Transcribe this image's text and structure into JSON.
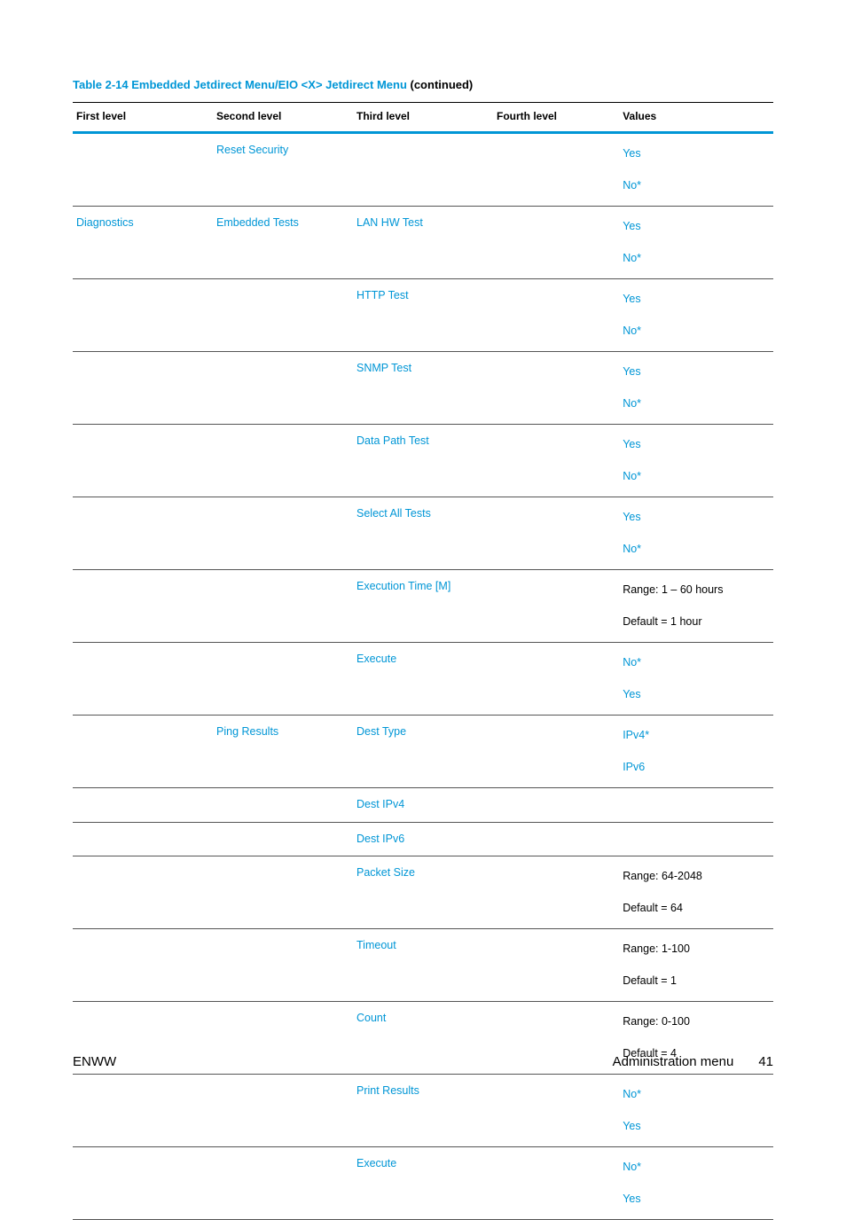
{
  "caption": {
    "prefix": "Table 2-14  Embedded Jetdirect Menu",
    "sep": "/",
    "mid": "EIO <X> Jetdirect Menu",
    "suffix": " (continued)"
  },
  "columns": {
    "c0": "First level",
    "c1": "Second level",
    "c2": "Third level",
    "c3": "Fourth level",
    "c4": "Values",
    "widths": [
      "20%",
      "20%",
      "20%",
      "18%",
      "22%"
    ]
  },
  "colors": {
    "link": "#0096d6",
    "text": "#000000",
    "header_rule": "#0096d6",
    "background": "#ffffff"
  },
  "rows": [
    {
      "c0": "",
      "c1": "Reset Security",
      "c2": "",
      "c3": "",
      "v": [
        "Yes",
        "No*"
      ],
      "vlink": [
        true,
        true
      ]
    },
    {
      "c0": "Diagnostics",
      "c1": "Embedded Tests",
      "c2": "LAN HW Test",
      "c3": "",
      "v": [
        "Yes",
        "No*"
      ],
      "vlink": [
        true,
        true
      ]
    },
    {
      "c0": "",
      "c1": "",
      "c2": "HTTP Test",
      "c3": "",
      "v": [
        "Yes",
        "No*"
      ],
      "vlink": [
        true,
        true
      ]
    },
    {
      "c0": "",
      "c1": "",
      "c2": "SNMP Test",
      "c3": "",
      "v": [
        "Yes",
        "No*"
      ],
      "vlink": [
        true,
        true
      ]
    },
    {
      "c0": "",
      "c1": "",
      "c2": "Data Path Test",
      "c3": "",
      "v": [
        "Yes",
        "No*"
      ],
      "vlink": [
        true,
        true
      ]
    },
    {
      "c0": "",
      "c1": "",
      "c2": "Select All Tests",
      "c3": "",
      "v": [
        "Yes",
        "No*"
      ],
      "vlink": [
        true,
        true
      ]
    },
    {
      "c0": "",
      "c1": "",
      "c2": "Execution Time [M]",
      "c3": "",
      "v": [
        "Range: 1 – 60 hours",
        "Default = 1 hour"
      ],
      "vlink": [
        false,
        false
      ]
    },
    {
      "c0": "",
      "c1": "",
      "c2": "Execute",
      "c3": "",
      "v": [
        "No*",
        "Yes"
      ],
      "vlink": [
        true,
        true
      ]
    },
    {
      "c0": "",
      "c1": "Ping Results",
      "c2": "Dest Type",
      "c3": "",
      "v": [
        "IPv4*",
        "IPv6"
      ],
      "vlink": [
        true,
        true
      ]
    },
    {
      "c0": "",
      "c1": "",
      "c2": "Dest IPv4",
      "c3": "",
      "v": [],
      "vlink": []
    },
    {
      "c0": "",
      "c1": "",
      "c2": "Dest IPv6",
      "c3": "",
      "v": [],
      "vlink": []
    },
    {
      "c0": "",
      "c1": "",
      "c2": "Packet Size",
      "c3": "",
      "v": [
        "Range: 64-2048",
        "Default = 64"
      ],
      "vlink": [
        false,
        false
      ]
    },
    {
      "c0": "",
      "c1": "",
      "c2": "Timeout",
      "c3": "",
      "v": [
        "Range: 1-100",
        "Default = 1"
      ],
      "vlink": [
        false,
        false
      ]
    },
    {
      "c0": "",
      "c1": "",
      "c2": "Count",
      "c3": "",
      "v": [
        "Range: 0-100",
        "Default = 4"
      ],
      "vlink": [
        false,
        false
      ]
    },
    {
      "c0": "",
      "c1": "",
      "c2": "Print Results",
      "c3": "",
      "v": [
        "No*",
        "Yes"
      ],
      "vlink": [
        true,
        true
      ]
    },
    {
      "c0": "",
      "c1": "",
      "c2": "Execute",
      "c3": "",
      "v": [
        "No*",
        "Yes"
      ],
      "vlink": [
        true,
        true
      ]
    }
  ],
  "footer": {
    "left": "ENWW",
    "right_label": "Administration menu",
    "page": "41"
  }
}
